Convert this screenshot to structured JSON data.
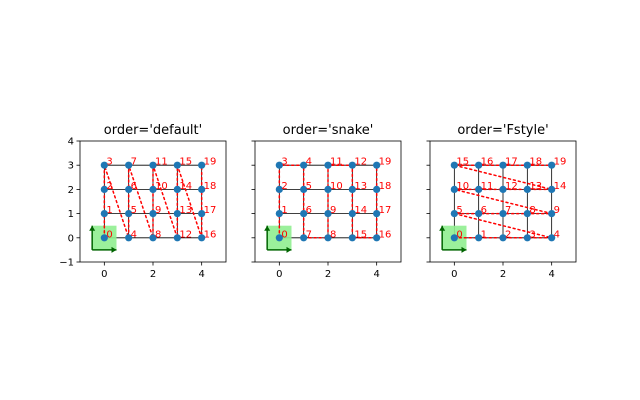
{
  "chart_data": [
    {
      "type": "scatter",
      "title": "order='default'",
      "xlim": [
        -1,
        5
      ],
      "ylim": [
        -1,
        4
      ],
      "x_ticks": [
        "0",
        "2",
        "4"
      ],
      "y_ticks": [
        "−1",
        "0",
        "1",
        "2",
        "3",
        "4"
      ],
      "grid": {
        "nx": 5,
        "ny": 4
      },
      "order": [
        [
          0,
          0
        ],
        [
          0,
          1
        ],
        [
          0,
          2
        ],
        [
          0,
          3
        ],
        [
          1,
          0
        ],
        [
          1,
          1
        ],
        [
          1,
          2
        ],
        [
          1,
          3
        ],
        [
          2,
          0
        ],
        [
          2,
          1
        ],
        [
          2,
          2
        ],
        [
          2,
          3
        ],
        [
          3,
          0
        ],
        [
          3,
          1
        ],
        [
          3,
          2
        ],
        [
          3,
          3
        ],
        [
          4,
          0
        ],
        [
          4,
          1
        ],
        [
          4,
          2
        ],
        [
          4,
          3
        ]
      ],
      "point_labels": [
        "0",
        "1",
        "2",
        "3",
        "4",
        "5",
        "6",
        "7",
        "8",
        "9",
        "10",
        "11",
        "12",
        "13",
        "14",
        "15",
        "16",
        "17",
        "18",
        "19"
      ],
      "show_y_tick_labels": true
    },
    {
      "type": "scatter",
      "title": "order='snake'",
      "xlim": [
        -1,
        5
      ],
      "ylim": [
        -1,
        4
      ],
      "x_ticks": [
        "0",
        "2",
        "4"
      ],
      "y_ticks": [
        "−1",
        "0",
        "1",
        "2",
        "3",
        "4"
      ],
      "grid": {
        "nx": 5,
        "ny": 4
      },
      "order": [
        [
          0,
          0
        ],
        [
          0,
          1
        ],
        [
          0,
          2
        ],
        [
          0,
          3
        ],
        [
          1,
          3
        ],
        [
          1,
          2
        ],
        [
          1,
          1
        ],
        [
          1,
          0
        ],
        [
          2,
          0
        ],
        [
          2,
          1
        ],
        [
          2,
          2
        ],
        [
          2,
          3
        ],
        [
          3,
          3
        ],
        [
          3,
          2
        ],
        [
          3,
          1
        ],
        [
          3,
          0
        ],
        [
          4,
          0
        ],
        [
          4,
          1
        ],
        [
          4,
          2
        ],
        [
          4,
          3
        ]
      ],
      "point_labels": [
        "0",
        "1",
        "2",
        "3",
        "4",
        "5",
        "6",
        "7",
        "8",
        "9",
        "10",
        "11",
        "12",
        "13",
        "14",
        "15",
        "16",
        "17",
        "18",
        "19"
      ],
      "show_y_tick_labels": false
    },
    {
      "type": "scatter",
      "title": "order='Fstyle'",
      "xlim": [
        -1,
        5
      ],
      "ylim": [
        -1,
        4
      ],
      "x_ticks": [
        "0",
        "2",
        "4"
      ],
      "y_ticks": [
        "−1",
        "0",
        "1",
        "2",
        "3",
        "4"
      ],
      "grid": {
        "nx": 5,
        "ny": 4
      },
      "order": [
        [
          0,
          0
        ],
        [
          1,
          0
        ],
        [
          2,
          0
        ],
        [
          3,
          0
        ],
        [
          4,
          0
        ],
        [
          0,
          1
        ],
        [
          1,
          1
        ],
        [
          2,
          1
        ],
        [
          3,
          1
        ],
        [
          4,
          1
        ],
        [
          0,
          2
        ],
        [
          1,
          2
        ],
        [
          2,
          2
        ],
        [
          3,
          2
        ],
        [
          4,
          2
        ],
        [
          0,
          3
        ],
        [
          1,
          3
        ],
        [
          2,
          3
        ],
        [
          3,
          3
        ],
        [
          4,
          3
        ]
      ],
      "point_labels": [
        "0",
        "1",
        "2",
        "3",
        "4",
        "5",
        "6",
        "7",
        "8",
        "9",
        "10",
        "11",
        "12",
        "13",
        "14",
        "15",
        "16",
        "17",
        "18",
        "19"
      ],
      "show_y_tick_labels": false
    }
  ],
  "colors": {
    "point": "#1f77b4",
    "path": "#ff0000",
    "grid_line": "#000000",
    "highlight_fill": "#90ee90",
    "arrow": "#006400"
  }
}
